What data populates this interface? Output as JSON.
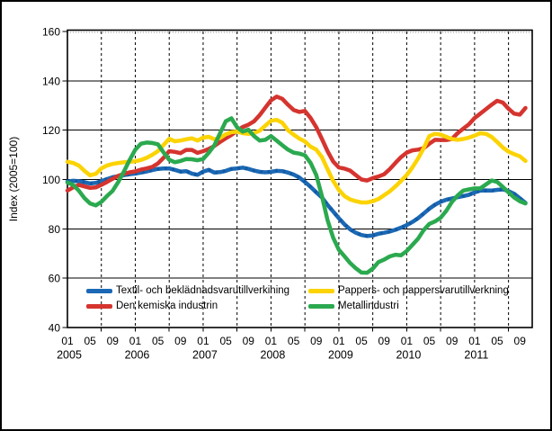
{
  "chart_data": {
    "type": "line",
    "title": "",
    "ylabel": "Index (2005=100)",
    "ylim": [
      40,
      160
    ],
    "ytick_step": 20,
    "y_ticks": [
      160,
      140,
      120,
      100,
      80,
      60,
      40
    ],
    "x_start": "2005-01",
    "x_end": "2011-10",
    "x_tick_labels": [
      "01",
      "05",
      "09"
    ],
    "years": [
      "2005",
      "2006",
      "2007",
      "2008",
      "2009",
      "2010",
      "2011"
    ],
    "grid": {
      "horizontal": "solid",
      "vertical": "dashed-every-6-months"
    },
    "legend_position": "bottom-inside-two-columns",
    "series": [
      {
        "key": "textil",
        "name": "Textil- och beklädnadsvarutillverkining",
        "color": "#1B69B5",
        "overlay_dash_color": "#0C4D91",
        "values": [
          99.2,
          99.5,
          99.3,
          98.9,
          98.4,
          98.6,
          99.3,
          100.2,
          100.9,
          101.4,
          101.8,
          102.1,
          102.4,
          102.8,
          103.3,
          103.8,
          104.3,
          104.5,
          104.5,
          103.9,
          103.2,
          103.4,
          102.4,
          101.9,
          103.2,
          103.9,
          102.8,
          103.0,
          103.5,
          104.3,
          104.5,
          104.8,
          104.3,
          103.6,
          103.1,
          102.9,
          103.1,
          103.5,
          103.4,
          102.8,
          102.0,
          100.8,
          99.0,
          97.0,
          94.8,
          92.7,
          89.7,
          87.0,
          84.3,
          81.8,
          79.8,
          78.4,
          77.5,
          77.1,
          77.3,
          78.0,
          78.4,
          78.9,
          79.6,
          80.5,
          81.5,
          82.8,
          84.3,
          86.2,
          88.2,
          89.8,
          91.0,
          91.8,
          92.3,
          92.8,
          93.3,
          93.8,
          94.8,
          95.5,
          95.6,
          95.5,
          95.8,
          96.0,
          95.3,
          94.2,
          92.4,
          90.5
        ]
      },
      {
        "key": "kemiska",
        "name": "Den kemiska industrin",
        "color": "#D5342F",
        "values": [
          95.5,
          96.8,
          97.8,
          97.2,
          96.6,
          96.8,
          97.8,
          99.0,
          100.3,
          101.5,
          102.3,
          102.9,
          103.3,
          104.0,
          104.5,
          105.1,
          106.5,
          108.8,
          111.5,
          111.2,
          110.7,
          112.0,
          112.0,
          110.8,
          111.5,
          112.4,
          113.6,
          115.2,
          116.7,
          118.1,
          119.7,
          121.3,
          122.2,
          123.6,
          126.1,
          129.1,
          132.1,
          133.6,
          132.7,
          130.3,
          128.2,
          127.4,
          127.8,
          124.9,
          121.2,
          116.4,
          111.5,
          107.3,
          104.9,
          104.4,
          103.6,
          101.8,
          100.0,
          99.6,
          100.6,
          101.2,
          102.1,
          104.2,
          106.7,
          109.1,
          110.9,
          111.8,
          112.1,
          112.7,
          114.5,
          116.1,
          116.0,
          116.0,
          116.4,
          118.8,
          120.6,
          122.4,
          124.9,
          126.7,
          128.5,
          130.3,
          131.9,
          131.2,
          128.7,
          126.7,
          126.3,
          129.0
        ]
      },
      {
        "key": "pappers",
        "name": "Pappers- och pappersvarutillverkning",
        "color": "#FCD303",
        "values": [
          107.2,
          106.7,
          105.7,
          103.5,
          101.7,
          102.3,
          104.5,
          105.7,
          106.3,
          106.7,
          107.0,
          107.2,
          107.4,
          107.9,
          108.8,
          110.0,
          111.5,
          114.0,
          116.5,
          115.5,
          115.8,
          116.3,
          116.7,
          115.8,
          117.0,
          117.3,
          116.3,
          116.8,
          118.3,
          119.2,
          119.4,
          118.8,
          118.5,
          118.8,
          119.8,
          121.8,
          123.8,
          124.2,
          123.0,
          120.0,
          118.2,
          116.6,
          115.4,
          113.3,
          112.1,
          109.1,
          104.2,
          99.4,
          95.8,
          93.3,
          91.9,
          91.2,
          90.7,
          90.7,
          91.2,
          92.1,
          93.6,
          95.2,
          97.2,
          99.4,
          101.8,
          104.9,
          108.5,
          112.7,
          117.6,
          118.5,
          118.2,
          117.3,
          116.4,
          116.1,
          116.4,
          117.0,
          117.8,
          118.8,
          118.5,
          117.3,
          115.2,
          113.0,
          111.3,
          110.3,
          109.4,
          107.5
        ]
      },
      {
        "key": "metall",
        "name": "Metallindustri",
        "color": "#2BA94F",
        "values": [
          98.8,
          97.8,
          95.5,
          92.5,
          90.3,
          89.5,
          90.9,
          93.3,
          95.4,
          99.0,
          103.3,
          107.9,
          112.1,
          114.5,
          115.0,
          114.8,
          114.3,
          111.0,
          108.0,
          107.0,
          107.5,
          108.3,
          108.2,
          107.8,
          108.3,
          110.9,
          113.9,
          118.8,
          123.6,
          124.8,
          121.2,
          119.4,
          120.2,
          117.6,
          115.8,
          116.1,
          117.6,
          115.8,
          113.9,
          112.1,
          110.9,
          110.5,
          109.8,
          106.7,
          101.8,
          93.3,
          83.6,
          76.4,
          71.5,
          68.9,
          66.1,
          64.0,
          62.3,
          62.2,
          63.9,
          66.5,
          67.5,
          68.8,
          69.5,
          69.3,
          71.0,
          73.5,
          76.0,
          79.5,
          82.0,
          83.0,
          84.5,
          87.3,
          90.9,
          93.5,
          95.5,
          96.0,
          96.4,
          96.4,
          98.0,
          99.6,
          99.0,
          97.0,
          94.8,
          92.7,
          91.2,
          90.3
        ]
      }
    ]
  }
}
